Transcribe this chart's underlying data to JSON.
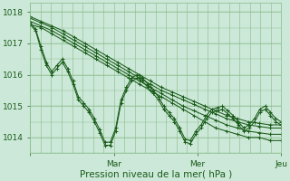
{
  "background_color": "#cce8d8",
  "plot_bg_color": "#cce8d8",
  "grid_color": "#88bb88",
  "line_color": "#1a5c1a",
  "ylim": [
    1013.5,
    1018.3
  ],
  "yticks": [
    1014,
    1015,
    1016,
    1017,
    1018
  ],
  "xlabel": "Pression niveau de la mer( hPa )",
  "xlabel_fontsize": 7.5,
  "tick_fontsize": 6.5,
  "xlim": [
    0,
    144
  ],
  "xtick_major": [
    0,
    48,
    96,
    144
  ],
  "xtick_major_labels": [
    "",
    "Mar",
    "Mer",
    "Jeu"
  ],
  "series": [
    {
      "type": "straight",
      "data": [
        1017.6,
        1017.5,
        1017.3,
        1017.1,
        1016.9,
        1016.7,
        1016.5,
        1016.3,
        1016.1,
        1015.9,
        1015.7,
        1015.5,
        1015.3,
        1015.1,
        1014.9,
        1014.7,
        1014.5,
        1014.3,
        1014.2,
        1014.1,
        1014.0,
        1014.0,
        1013.9,
        1013.9
      ]
    },
    {
      "type": "straight",
      "data": [
        1017.7,
        1017.55,
        1017.4,
        1017.2,
        1017.0,
        1016.8,
        1016.6,
        1016.4,
        1016.2,
        1016.0,
        1015.8,
        1015.6,
        1015.4,
        1015.2,
        1015.0,
        1014.85,
        1014.7,
        1014.55,
        1014.4,
        1014.3,
        1014.2,
        1014.15,
        1014.1,
        1014.1
      ]
    },
    {
      "type": "straight",
      "data": [
        1017.8,
        1017.65,
        1017.5,
        1017.3,
        1017.1,
        1016.9,
        1016.7,
        1016.5,
        1016.3,
        1016.1,
        1015.9,
        1015.7,
        1015.5,
        1015.35,
        1015.2,
        1015.05,
        1014.9,
        1014.75,
        1014.6,
        1014.5,
        1014.4,
        1014.35,
        1014.3,
        1014.3
      ]
    },
    {
      "type": "straight",
      "data": [
        1017.85,
        1017.7,
        1017.55,
        1017.4,
        1017.2,
        1017.0,
        1016.8,
        1016.6,
        1016.4,
        1016.2,
        1016.0,
        1015.8,
        1015.6,
        1015.45,
        1015.3,
        1015.15,
        1015.0,
        1014.85,
        1014.7,
        1014.6,
        1014.5,
        1014.45,
        1014.4,
        1014.4
      ]
    },
    {
      "type": "wavy",
      "data": [
        1017.6,
        1017.4,
        1016.8,
        1016.3,
        1016.0,
        1016.2,
        1016.4,
        1016.1,
        1015.7,
        1015.2,
        1015.0,
        1014.8,
        1014.5,
        1014.15,
        1013.75,
        1013.75,
        1014.2,
        1015.1,
        1015.5,
        1015.8,
        1015.9,
        1015.8,
        1015.6,
        1015.4,
        1015.2,
        1014.9,
        1014.7,
        1014.5,
        1014.2,
        1013.85,
        1013.8,
        1014.1,
        1014.3,
        1014.6,
        1014.8,
        1014.85,
        1014.9,
        1014.75,
        1014.6,
        1014.4,
        1014.2,
        1014.3,
        1014.5,
        1014.8,
        1014.9,
        1014.7,
        1014.5,
        1014.4
      ]
    },
    {
      "type": "wavy2",
      "data": [
        1017.65,
        1017.45,
        1016.9,
        1016.4,
        1016.1,
        1016.3,
        1016.5,
        1016.2,
        1015.8,
        1015.3,
        1015.1,
        1014.9,
        1014.6,
        1014.25,
        1013.85,
        1013.85,
        1014.3,
        1015.2,
        1015.6,
        1015.9,
        1016.0,
        1015.9,
        1015.7,
        1015.5,
        1015.3,
        1015.0,
        1014.8,
        1014.6,
        1014.3,
        1013.95,
        1013.9,
        1014.2,
        1014.4,
        1014.7,
        1014.9,
        1014.95,
        1015.0,
        1014.85,
        1014.7,
        1014.5,
        1014.3,
        1014.4,
        1014.6,
        1014.9,
        1015.0,
        1014.8,
        1014.6,
        1014.5
      ]
    }
  ]
}
